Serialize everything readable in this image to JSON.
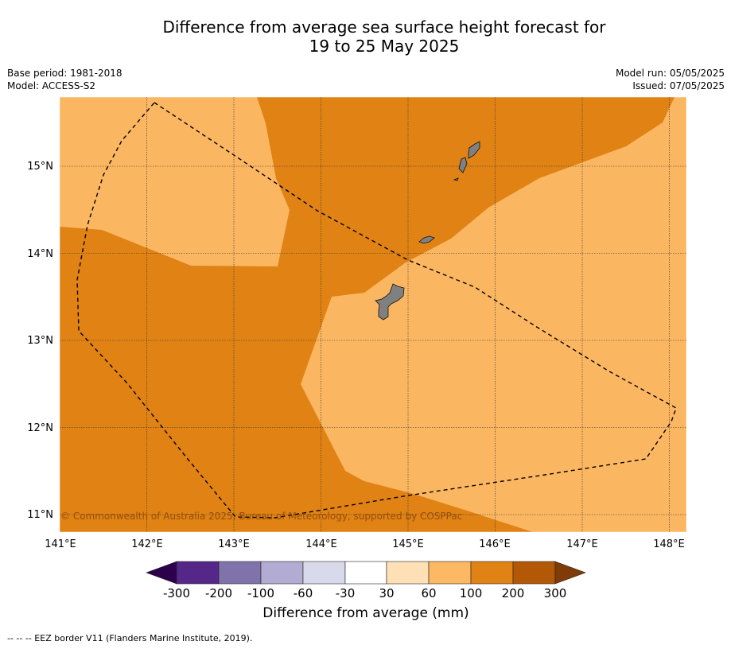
{
  "title_line1": "Difference from average sea surface height forecast for",
  "title_line2": "19 to 25 May 2025",
  "meta": {
    "base_period": "Base period: 1981-2018",
    "model": "Model: ACCESS-S2",
    "model_run": "Model run: 05/05/2025",
    "issued": "Issued: 07/05/2025"
  },
  "copyright": "© Commonwealth of Australia 2025, Bureau of Meteorology, supported by COSPPac",
  "footer": "--  --  -- EEZ border V11 (Flanders Marine Institute, 2019).",
  "map": {
    "lon_ticks": [
      "141°E",
      "142°E",
      "143°E",
      "144°E",
      "145°E",
      "146°E",
      "147°E",
      "148°E"
    ],
    "lat_ticks": [
      "15°N",
      "14°N",
      "13°N",
      "12°N",
      "11°N"
    ],
    "colors": {
      "range_60_100": "#fbb661",
      "range_100_200": "#e08214",
      "land": "#808080"
    }
  },
  "colorbar": {
    "title": "Difference from average (mm)",
    "labels": [
      "-300",
      "-200",
      "-100",
      "-60",
      "-30",
      "30",
      "60",
      "100",
      "200",
      "300"
    ],
    "colors": [
      "#2d004b",
      "#542788",
      "#8073ac",
      "#b2abd2",
      "#d8daeb",
      "#ffffff",
      "#fee0b6",
      "#fdb863",
      "#e08214",
      "#b35806",
      "#7f3b08"
    ]
  }
}
